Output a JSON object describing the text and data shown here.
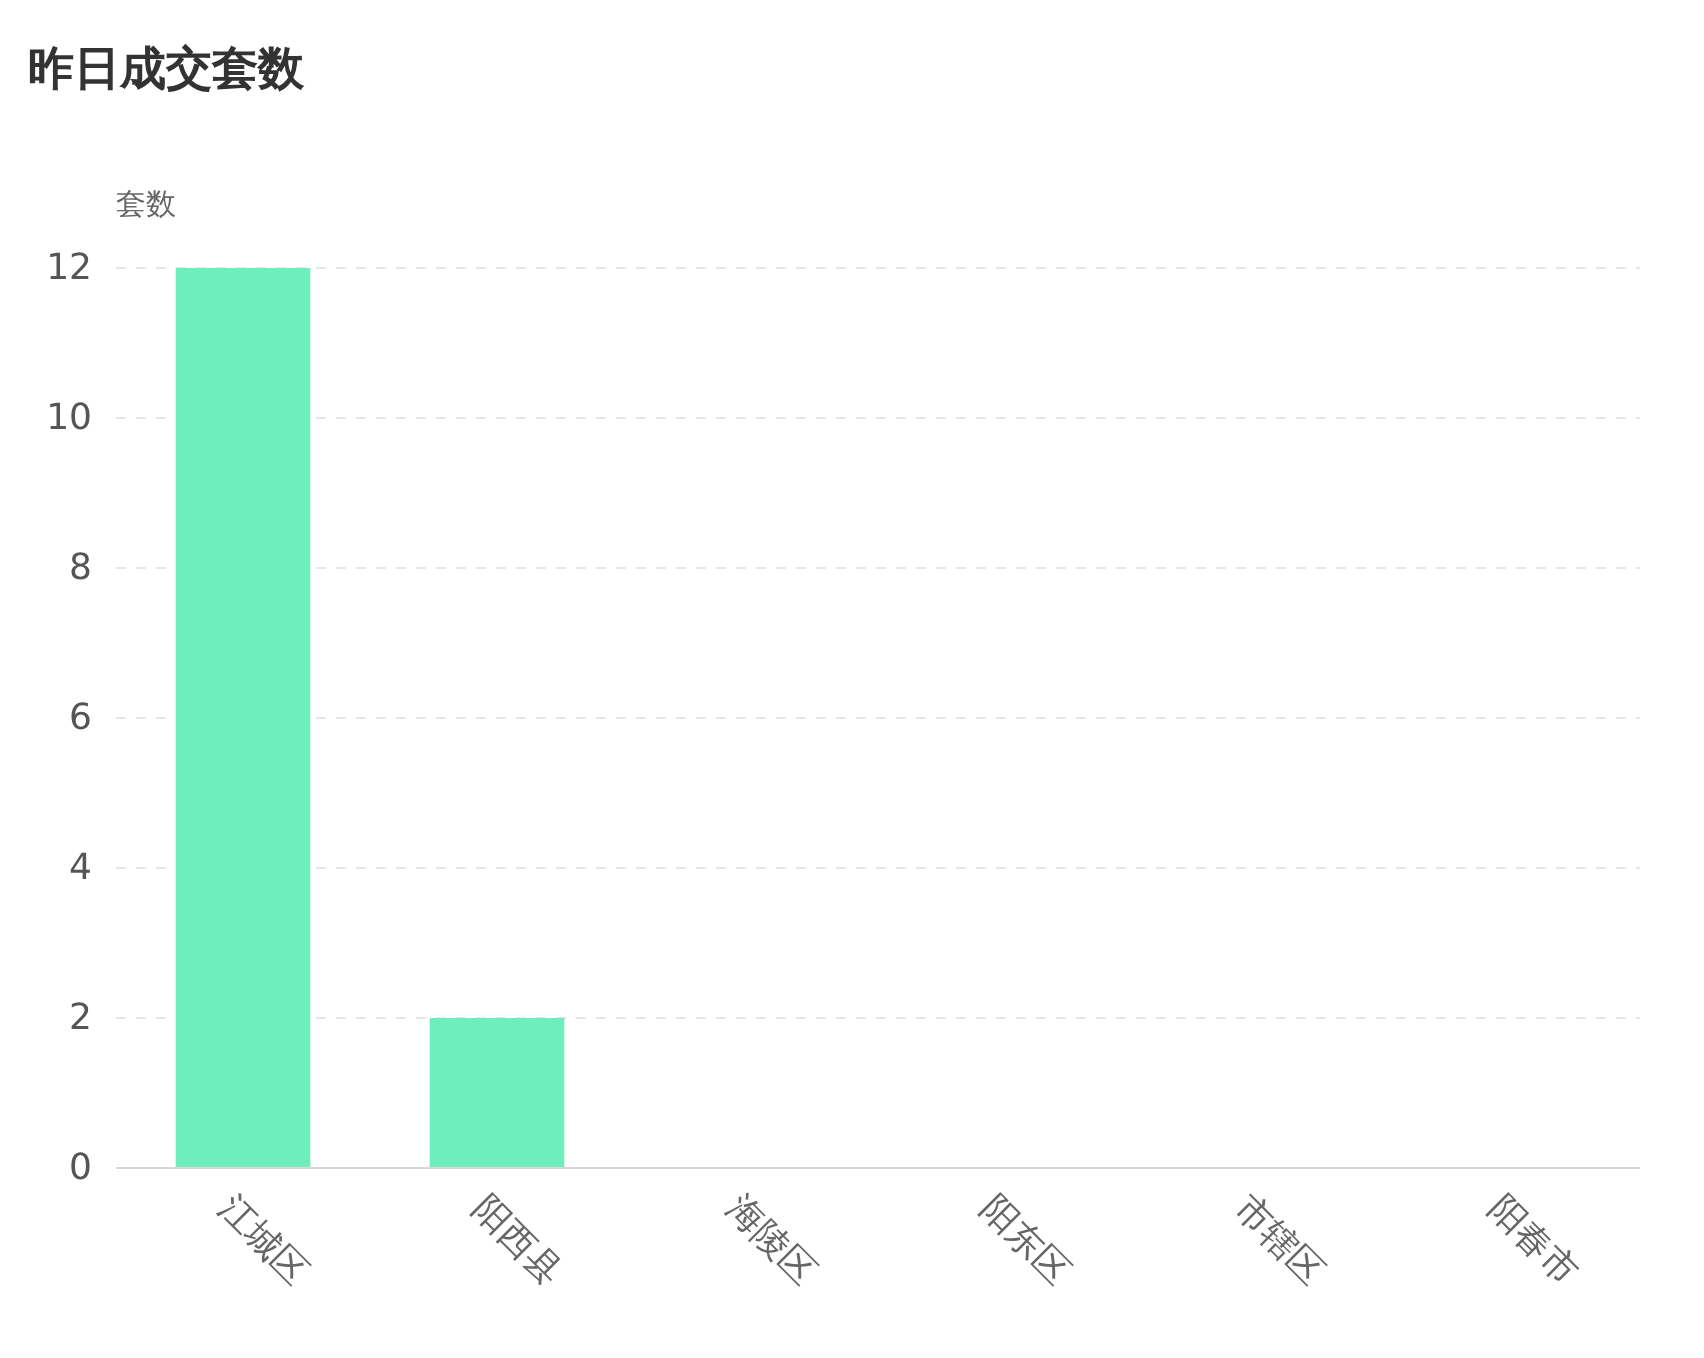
{
  "chart_data": {
    "type": "bar",
    "title": "昨日成交套数",
    "ylabel": "套数",
    "categories": [
      "江城区",
      "阳西县",
      "海陵区",
      "阳东区",
      "市辖区",
      "阳春市"
    ],
    "values": [
      12,
      2,
      0,
      0,
      0,
      0
    ],
    "color": "#6eedbd",
    "ylim": [
      0,
      12
    ],
    "yticks": [
      0,
      2,
      4,
      6,
      8,
      10,
      12
    ],
    "grid": "y"
  }
}
